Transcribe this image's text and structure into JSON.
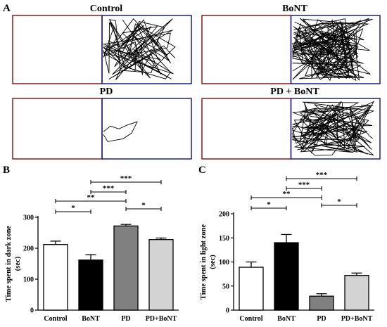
{
  "panels": {
    "A": "A",
    "B": "B",
    "C": "C"
  },
  "arenas": [
    {
      "title": "Control",
      "activity": "medium"
    },
    {
      "title": "BoNT",
      "activity": "high"
    },
    {
      "title": "PD",
      "activity": "low"
    },
    {
      "title": "PD + BoNT",
      "activity": "full"
    }
  ],
  "colors": {
    "dark_zone_border": "#8b1a1a",
    "light_zone_border": "#1c1c8a",
    "track": "#000000"
  },
  "chart_data": [
    {
      "type": "bar",
      "panel": "B",
      "categories": [
        "Control",
        "BoNT",
        "PD",
        "PD+BoNT"
      ],
      "values": [
        212,
        162,
        272,
        228
      ],
      "errors": [
        11,
        17,
        5,
        5
      ],
      "fills": [
        "#ffffff",
        "#000000",
        "#808080",
        "#d3d3d3"
      ],
      "ylabel_line1": "Time spent in dark zone",
      "ylabel_line2": "(sec)",
      "ylim": [
        0,
        300
      ],
      "yticks": [
        "0",
        "100",
        "200",
        "300"
      ],
      "comparisons": [
        {
          "from": 0,
          "to": 1,
          "label": "*"
        },
        {
          "from": 0,
          "to": 2,
          "label": "**"
        },
        {
          "from": 1,
          "to": 2,
          "label": "***"
        },
        {
          "from": 1,
          "to": 3,
          "label": "***"
        },
        {
          "from": 2,
          "to": 3,
          "label": "*"
        }
      ]
    },
    {
      "type": "bar",
      "panel": "C",
      "categories": [
        "Control",
        "BoNT",
        "PD",
        "PD+BoNT"
      ],
      "values": [
        89,
        140,
        29,
        72
      ],
      "errors": [
        11,
        17,
        5,
        5
      ],
      "fills": [
        "#ffffff",
        "#000000",
        "#808080",
        "#d3d3d3"
      ],
      "ylabel_line1": "Time spent in light zone",
      "ylabel_line2": "(sec)",
      "ylim": [
        0,
        200
      ],
      "yticks": [
        "0",
        "50",
        "100",
        "150",
        "200"
      ],
      "comparisons": [
        {
          "from": 0,
          "to": 1,
          "label": "*"
        },
        {
          "from": 0,
          "to": 2,
          "label": "**"
        },
        {
          "from": 1,
          "to": 2,
          "label": "***"
        },
        {
          "from": 1,
          "to": 3,
          "label": "***"
        },
        {
          "from": 2,
          "to": 3,
          "label": "*"
        }
      ]
    }
  ]
}
